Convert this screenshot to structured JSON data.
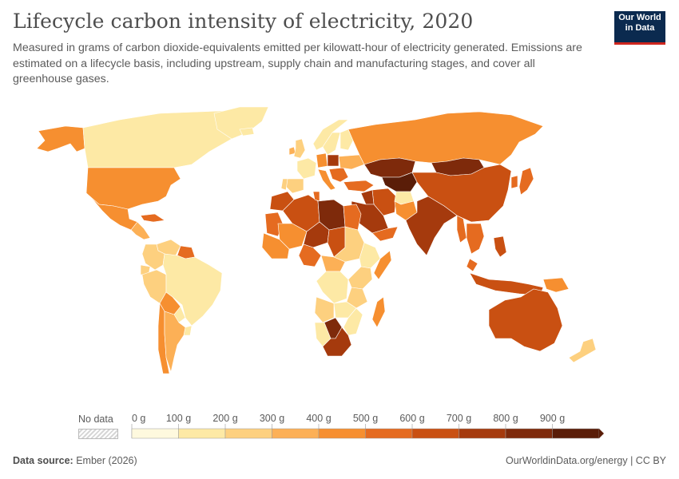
{
  "header": {
    "title": "Lifecycle carbon intensity of electricity, 2020",
    "subtitle": "Measured in grams of carbon dioxide-equivalents emitted per kilowatt-hour of electricity generated. Emissions are estimated on a lifecycle basis, including upstream, supply chain and manufacturing stages, and cover all greenhouse gases."
  },
  "logo": {
    "line1": "Our World",
    "line2": "in Data"
  },
  "legend": {
    "no_data_label": "No data",
    "tick_labels": [
      "0 g",
      "100 g",
      "200 g",
      "300 g",
      "400 g",
      "500 g",
      "600 g",
      "700 g",
      "800 g",
      "900 g"
    ],
    "bin_colors": [
      "#fef9de",
      "#fde9a5",
      "#fdd07f",
      "#fcb056",
      "#f68f30",
      "#e56b20",
      "#c95012",
      "#a53a0d",
      "#7e2a0b",
      "#5a1d08"
    ]
  },
  "footer": {
    "source_label": "Data source:",
    "source_value": "Ember (2026)",
    "url_license": "OurWorldinData.org/energy | CC BY"
  },
  "colors": {
    "title": "#4e4e4e",
    "text": "#5b5b5b",
    "logo_bg": "#0b2a4f",
    "logo_accent": "#ce261e",
    "border": "#ffffff"
  },
  "regions": [
    {
      "name": "Canada",
      "bin": 1
    },
    {
      "name": "Alaska",
      "bin": 4
    },
    {
      "name": "Greenland",
      "bin": 1
    },
    {
      "name": "United States",
      "bin": 4
    },
    {
      "name": "Mexico",
      "bin": 4
    },
    {
      "name": "Central America",
      "bin": 3
    },
    {
      "name": "Cuba",
      "bin": 5
    },
    {
      "name": "Venezuela",
      "bin": 2
    },
    {
      "name": "Guianas",
      "bin": 5
    },
    {
      "name": "Colombia",
      "bin": 2
    },
    {
      "name": "Ecuador",
      "bin": 2
    },
    {
      "name": "Peru",
      "bin": 2
    },
    {
      "name": "Brazil",
      "bin": 1
    },
    {
      "name": "Bolivia",
      "bin": 4
    },
    {
      "name": "Paraguay",
      "bin": 1
    },
    {
      "name": "Chile",
      "bin": 4
    },
    {
      "name": "Argentina",
      "bin": 3
    },
    {
      "name": "Uruguay",
      "bin": 1
    },
    {
      "name": "Iceland",
      "bin": 1
    },
    {
      "name": "United Kingdom",
      "bin": 2
    },
    {
      "name": "Ireland",
      "bin": 3
    },
    {
      "name": "Norway",
      "bin": 1
    },
    {
      "name": "Sweden",
      "bin": 1
    },
    {
      "name": "Finland",
      "bin": 1
    },
    {
      "name": "France",
      "bin": 1
    },
    {
      "name": "Spain",
      "bin": 2
    },
    {
      "name": "Portugal",
      "bin": 2
    },
    {
      "name": "Germany",
      "bin": 4
    },
    {
      "name": "Poland",
      "bin": 7
    },
    {
      "name": "Italy",
      "bin": 4
    },
    {
      "name": "Balkans",
      "bin": 5
    },
    {
      "name": "Ukraine",
      "bin": 3
    },
    {
      "name": "Turkey",
      "bin": 5
    },
    {
      "name": "Russia",
      "bin": 4
    },
    {
      "name": "Kazakhstan",
      "bin": 8
    },
    {
      "name": "Central Asia",
      "bin": 9
    },
    {
      "name": "Mongolia",
      "bin": 8
    },
    {
      "name": "China",
      "bin": 6
    },
    {
      "name": "Korea",
      "bin": 5
    },
    {
      "name": "Japan",
      "bin": 5
    },
    {
      "name": "Iran",
      "bin": 6
    },
    {
      "name": "Iraq",
      "bin": 7
    },
    {
      "name": "Saudi Arabia",
      "bin": 7
    },
    {
      "name": "Arabian Peninsula",
      "bin": 5
    },
    {
      "name": "Afghanistan",
      "bin": 1
    },
    {
      "name": "Pakistan",
      "bin": 4
    },
    {
      "name": "India",
      "bin": 7
    },
    {
      "name": "Myanmar",
      "bin": 5
    },
    {
      "name": "Indochina",
      "bin": 5
    },
    {
      "name": "Malaysia",
      "bin": 5
    },
    {
      "name": "Indonesia",
      "bin": 6
    },
    {
      "name": "Philippines",
      "bin": 6
    },
    {
      "name": "Papua New Guinea",
      "bin": 4
    },
    {
      "name": "Australia",
      "bin": 6
    },
    {
      "name": "New Zealand",
      "bin": 2
    },
    {
      "name": "Morocco",
      "bin": 6
    },
    {
      "name": "Algeria",
      "bin": 6
    },
    {
      "name": "Tunisia",
      "bin": 5
    },
    {
      "name": "Libya",
      "bin": 8
    },
    {
      "name": "Egypt",
      "bin": 5
    },
    {
      "name": "Mauritania",
      "bin": 5
    },
    {
      "name": "Mali",
      "bin": 4
    },
    {
      "name": "Niger",
      "bin": 7
    },
    {
      "name": "Chad",
      "bin": 6
    },
    {
      "name": "Sudan",
      "bin": 2
    },
    {
      "name": "Ethiopia",
      "bin": 1
    },
    {
      "name": "Somalia",
      "bin": 4
    },
    {
      "name": "West Africa",
      "bin": 4
    },
    {
      "name": "Nigeria",
      "bin": 5
    },
    {
      "name": "Central African Republic",
      "bin": 3
    },
    {
      "name": "DR Congo",
      "bin": 1
    },
    {
      "name": "Kenya",
      "bin": 2
    },
    {
      "name": "Tanzania",
      "bin": 2
    },
    {
      "name": "Angola",
      "bin": 2
    },
    {
      "name": "Zambia",
      "bin": 1
    },
    {
      "name": "Namibia",
      "bin": 1
    },
    {
      "name": "Botswana",
      "bin": 8
    },
    {
      "name": "South Africa",
      "bin": 7
    },
    {
      "name": "Mozambique",
      "bin": 1
    },
    {
      "name": "Madagascar",
      "bin": 4
    }
  ]
}
